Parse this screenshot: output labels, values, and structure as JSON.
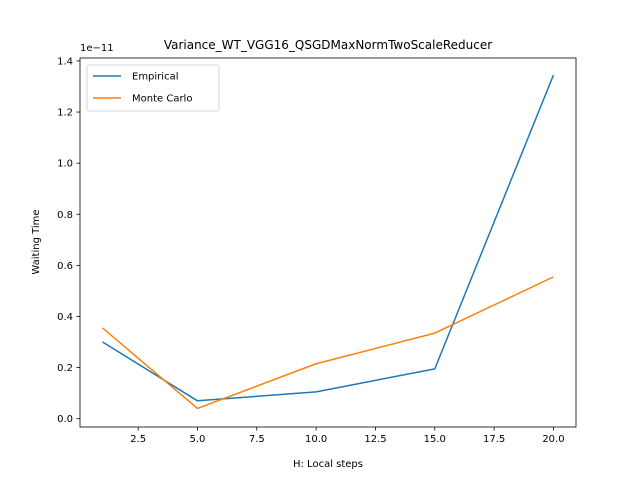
{
  "chart_data": {
    "type": "line",
    "title": "Variance_WT_VGG16_QSGDMaxNormTwoScaleReducer",
    "xlabel": "H: Local steps",
    "ylabel": "Waiting Time",
    "offset_text": "1e−11",
    "x": [
      1,
      5,
      10,
      15,
      20
    ],
    "xlim": [
      0.05,
      20.95
    ],
    "ylim": [
      -0.0325,
      1.4115
    ],
    "xticks": [
      2.5,
      5.0,
      7.5,
      10.0,
      12.5,
      15.0,
      17.5,
      20.0
    ],
    "xtick_labels": [
      "2.5",
      "5.0",
      "7.5",
      "10.0",
      "12.5",
      "15.0",
      "17.5",
      "20.0"
    ],
    "yticks": [
      0.0,
      0.2,
      0.4,
      0.6,
      0.8,
      1.0,
      1.2,
      1.4
    ],
    "ytick_labels": [
      "0.0",
      "0.2",
      "0.4",
      "0.6",
      "0.8",
      "1.0",
      "1.2",
      "1.4"
    ],
    "grid": false,
    "legend_position": "top-left",
    "series": [
      {
        "name": "Empirical",
        "color": "#1f77b4",
        "values": [
          0.3,
          0.07,
          0.105,
          0.195,
          1.345
        ]
      },
      {
        "name": "Monte Carlo",
        "color": "#ff7f0e",
        "values": [
          0.355,
          0.04,
          0.215,
          0.335,
          0.555
        ]
      }
    ]
  }
}
